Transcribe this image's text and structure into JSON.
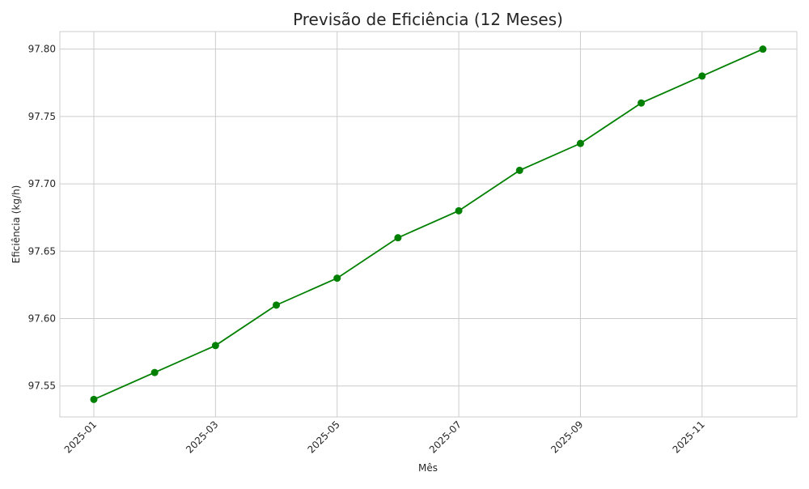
{
  "chart_data": {
    "type": "line",
    "title": "Previsão de Eficiência (12 Meses)",
    "xlabel": "Mês",
    "ylabel": "Eficiência (kg/h)",
    "x": [
      "2025-01",
      "2025-02",
      "2025-03",
      "2025-04",
      "2025-05",
      "2025-06",
      "2025-07",
      "2025-08",
      "2025-09",
      "2025-10",
      "2025-11",
      "2025-12"
    ],
    "series": [
      {
        "values": [
          97.54,
          97.56,
          97.58,
          97.61,
          97.63,
          97.66,
          97.68,
          97.71,
          97.73,
          97.76,
          97.78,
          97.8
        ],
        "color": "#008000"
      }
    ],
    "xticks": [
      "2025-01",
      "2025-03",
      "2025-05",
      "2025-07",
      "2025-09",
      "2025-11"
    ],
    "yticks": [
      "97.55",
      "97.60",
      "97.65",
      "97.70",
      "97.75",
      "97.80"
    ],
    "ylim": [
      97.527,
      97.813
    ],
    "grid": true,
    "colors": {
      "grid": "#cccccc",
      "axes_edge": "#cccccc",
      "text": "#262626"
    }
  }
}
